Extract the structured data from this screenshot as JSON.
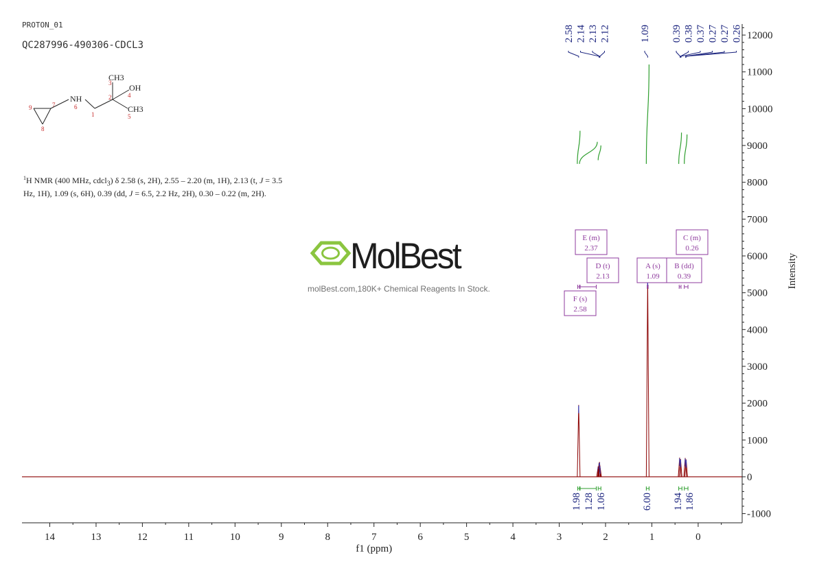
{
  "header": {
    "experiment": "PROTON_01",
    "sample": "QC287996-490306-CDCL3"
  },
  "nmr_description": {
    "nucleus_sup": "1",
    "text_1": "H NMR (400 MHz, cdcl",
    "text_sub": "3",
    "text_2": ") δ 2.58 (s, 2H), 2.55 – 2.20 (m, 1H), 2.13 (t, ",
    "j_symbol": "J",
    "text_3": " = 3.5 Hz, 1H), 1.09 (s, 6H), 0.39 (dd, ",
    "j_symbol_2": "J",
    "text_4": " = 6.5, 2.2 Hz, 2H), 0.30 – 0.22 (m, 2H)."
  },
  "structure": {
    "labels": [
      "CH3",
      "OH",
      "CH3",
      "NH"
    ],
    "atom_numbers": [
      "1",
      "2",
      "3",
      "4",
      "5",
      "6",
      "7",
      "8",
      "9"
    ]
  },
  "watermark": {
    "brand": "MolBest",
    "tagline": "molBest.com,180K+ Chemical Reagents In Stock."
  },
  "chart_data": {
    "type": "line",
    "title": "",
    "xlabel": "f1 (ppm)",
    "ylabel": "Intensity",
    "xlim": [
      14.6,
      -0.95
    ],
    "ylim": [
      -1250,
      12300
    ],
    "x_reversed": true,
    "x_ticks": [
      14,
      13,
      12,
      11,
      10,
      9,
      8,
      7,
      6,
      5,
      4,
      3,
      2,
      1,
      0
    ],
    "y_ticks": [
      -1000,
      0,
      1000,
      2000,
      3000,
      4000,
      5000,
      6000,
      7000,
      8000,
      9000,
      10000,
      11000,
      12000
    ],
    "y_axis_position": "right",
    "grid": false,
    "series": [
      {
        "color": "#8b0000",
        "peaks": [
          {
            "ppm": 2.58,
            "intensity": 1950
          },
          {
            "ppm": 2.16,
            "intensity": 280
          },
          {
            "ppm": 2.14,
            "intensity": 380
          },
          {
            "ppm": 2.13,
            "intensity": 400
          },
          {
            "ppm": 2.12,
            "intensity": 300
          },
          {
            "ppm": 1.09,
            "intensity": 5400
          },
          {
            "ppm": 0.4,
            "intensity": 520
          },
          {
            "ppm": 0.38,
            "intensity": 480
          },
          {
            "ppm": 0.28,
            "intensity": 510
          },
          {
            "ppm": 0.26,
            "intensity": 470
          }
        ]
      }
    ],
    "peak_labels": [
      "2.58",
      "2.14",
      "2.13",
      "2.12",
      "1.09",
      "0.39",
      "0.38",
      "0.37",
      "0.27",
      "0.27",
      "0.26"
    ],
    "multiplets": [
      {
        "id": "E",
        "mult": "m",
        "shift": "2.37"
      },
      {
        "id": "D",
        "mult": "t",
        "shift": "2.13"
      },
      {
        "id": "F",
        "mult": "s",
        "shift": "2.58"
      },
      {
        "id": "A",
        "mult": "s",
        "shift": "1.09"
      },
      {
        "id": "B",
        "mult": "dd",
        "shift": "0.39"
      },
      {
        "id": "C",
        "mult": "m",
        "shift": "0.26"
      }
    ],
    "integrals": [
      {
        "ppm": 2.58,
        "value": "1.98",
        "curve_from": 8500,
        "curve_to": 9400
      },
      {
        "ppm": 2.37,
        "value": "1.28",
        "curve_from": 8500,
        "curve_to": 9100
      },
      {
        "ppm": 2.13,
        "value": "1.06",
        "curve_from": 8600,
        "curve_to": 9000
      },
      {
        "ppm": 1.09,
        "value": "6.00",
        "curve_from": 8500,
        "curve_to": 11200
      },
      {
        "ppm": 0.39,
        "value": "1.94",
        "curve_from": 8500,
        "curve_to": 9350
      },
      {
        "ppm": 0.27,
        "value": "1.86",
        "curve_from": 8500,
        "curve_to": 9300
      }
    ]
  },
  "colors": {
    "spectrum": "#8b0000",
    "integral_curve": "#2e9e2e",
    "peak_label": "#1a237e",
    "multiplet_box": "#8e3a9d",
    "axis": "#222222",
    "brand_green": "#8bc540"
  }
}
